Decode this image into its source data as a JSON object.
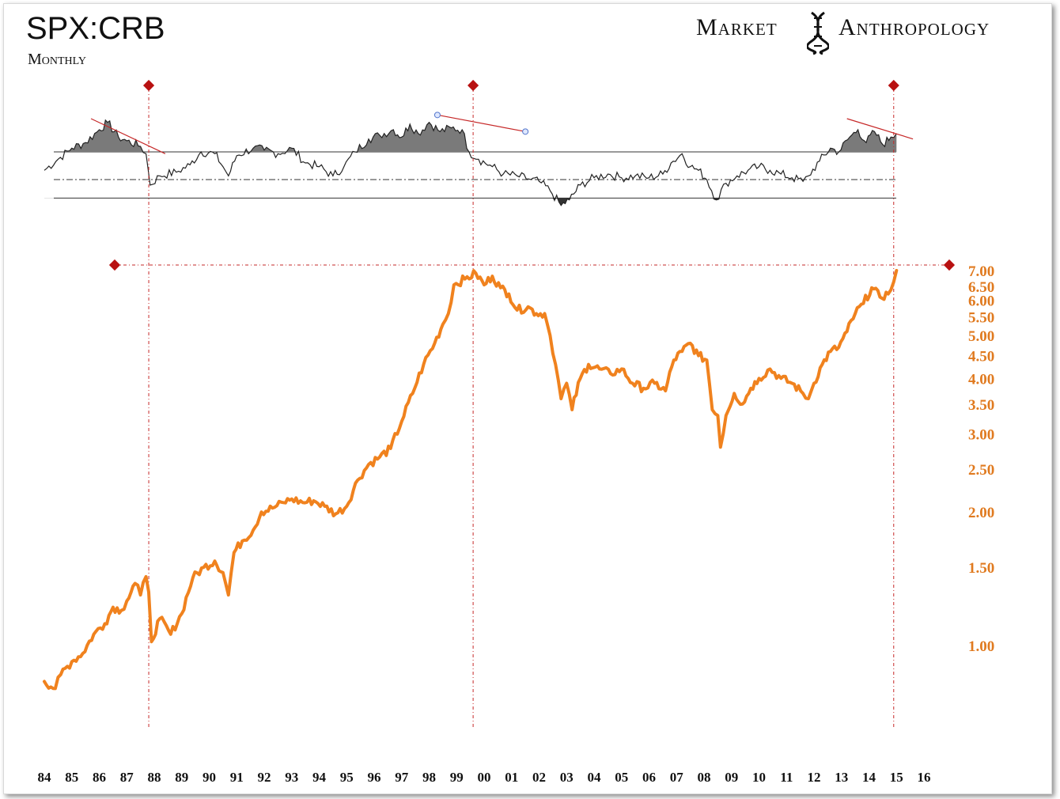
{
  "header": {
    "title": "SPX:CRB",
    "subtitle": "Monthly",
    "brand_left": "Market",
    "brand_right": "Anthropology",
    "brand_icon": "dna-icon"
  },
  "colors": {
    "ratio_line": "#f0821e",
    "ytick": "#e07a1f",
    "marker": "#b81111",
    "guide": "#c62828",
    "oscillator": "#222222",
    "oscillator_fill": "#7a7a7a"
  },
  "chart_data": {
    "type": "line",
    "title": "SPX:CRB",
    "subtitle": "Monthly",
    "y_scale": "log",
    "ylim": [
      0.78,
      7.1
    ],
    "xlim": [
      1984.0,
      2016.2
    ],
    "y_ticks": [
      "7.00",
      "6.50",
      "6.00",
      "5.50",
      "5.00",
      "4.50",
      "4.00",
      "3.50",
      "3.00",
      "2.50",
      "2.00",
      "1.50",
      "1.00"
    ],
    "x_ticks": [
      "84",
      "85",
      "86",
      "87",
      "88",
      "89",
      "90",
      "91",
      "92",
      "93",
      "94",
      "95",
      "96",
      "97",
      "98",
      "99",
      "00",
      "01",
      "02",
      "03",
      "04",
      "05",
      "06",
      "07",
      "08",
      "09",
      "10",
      "11",
      "12",
      "13",
      "14",
      "15",
      "16"
    ],
    "series": [
      {
        "values": [
          [
            1984.0,
            0.83
          ],
          [
            1984.4,
            0.8
          ],
          [
            1984.6,
            0.86
          ],
          [
            1985.0,
            0.92
          ],
          [
            1985.4,
            0.96
          ],
          [
            1985.8,
            1.06
          ],
          [
            1986.2,
            1.12
          ],
          [
            1986.5,
            1.22
          ],
          [
            1986.8,
            1.2
          ],
          [
            1987.0,
            1.26
          ],
          [
            1987.3,
            1.38
          ],
          [
            1987.5,
            1.3
          ],
          [
            1987.7,
            1.43
          ],
          [
            1987.8,
            1.32
          ],
          [
            1987.9,
            1.02
          ],
          [
            1988.2,
            1.15
          ],
          [
            1988.6,
            1.06
          ],
          [
            1989.0,
            1.18
          ],
          [
            1989.4,
            1.42
          ],
          [
            1989.8,
            1.5
          ],
          [
            1990.2,
            1.55
          ],
          [
            1990.5,
            1.46
          ],
          [
            1990.7,
            1.3
          ],
          [
            1990.9,
            1.62
          ],
          [
            1991.2,
            1.72
          ],
          [
            1991.6,
            1.82
          ],
          [
            1991.9,
            2.0
          ],
          [
            1992.3,
            2.04
          ],
          [
            1992.7,
            2.1
          ],
          [
            1993.0,
            2.14
          ],
          [
            1993.4,
            2.1
          ],
          [
            1993.8,
            2.12
          ],
          [
            1994.2,
            2.06
          ],
          [
            1994.6,
            1.98
          ],
          [
            1995.0,
            2.06
          ],
          [
            1995.4,
            2.36
          ],
          [
            1995.8,
            2.56
          ],
          [
            1996.2,
            2.66
          ],
          [
            1996.6,
            2.78
          ],
          [
            1997.0,
            3.2
          ],
          [
            1997.4,
            3.7
          ],
          [
            1997.8,
            4.3
          ],
          [
            1998.2,
            4.8
          ],
          [
            1998.5,
            5.3
          ],
          [
            1998.7,
            5.6
          ],
          [
            1998.9,
            6.5
          ],
          [
            1999.3,
            6.7
          ],
          [
            1999.7,
            6.9
          ],
          [
            2000.0,
            6.5
          ],
          [
            2000.3,
            6.8
          ],
          [
            2000.6,
            6.4
          ],
          [
            2000.9,
            6.2
          ],
          [
            2001.2,
            5.7
          ],
          [
            2001.6,
            5.8
          ],
          [
            2001.9,
            5.6
          ],
          [
            2002.2,
            5.6
          ],
          [
            2002.4,
            5.0
          ],
          [
            2002.6,
            4.3
          ],
          [
            2002.8,
            3.6
          ],
          [
            2003.0,
            3.9
          ],
          [
            2003.2,
            3.4
          ],
          [
            2003.5,
            4.0
          ],
          [
            2003.8,
            4.3
          ],
          [
            2004.2,
            4.2
          ],
          [
            2004.6,
            4.1
          ],
          [
            2005.0,
            4.2
          ],
          [
            2005.4,
            3.9
          ],
          [
            2005.8,
            3.8
          ],
          [
            2006.2,
            3.9
          ],
          [
            2006.6,
            3.75
          ],
          [
            2006.9,
            4.4
          ],
          [
            2007.2,
            4.6
          ],
          [
            2007.5,
            4.8
          ],
          [
            2007.8,
            4.5
          ],
          [
            2008.1,
            4.4
          ],
          [
            2008.3,
            3.4
          ],
          [
            2008.5,
            3.3
          ],
          [
            2008.6,
            2.8
          ],
          [
            2008.8,
            3.3
          ],
          [
            2009.1,
            3.7
          ],
          [
            2009.4,
            3.5
          ],
          [
            2009.7,
            3.8
          ],
          [
            2010.0,
            4.0
          ],
          [
            2010.4,
            4.2
          ],
          [
            2010.8,
            4.0
          ],
          [
            2011.2,
            3.9
          ],
          [
            2011.6,
            3.7
          ],
          [
            2011.8,
            3.6
          ],
          [
            2012.0,
            3.9
          ],
          [
            2012.3,
            4.3
          ],
          [
            2012.6,
            4.6
          ],
          [
            2012.9,
            4.7
          ],
          [
            2013.2,
            5.1
          ],
          [
            2013.5,
            5.6
          ],
          [
            2013.8,
            5.9
          ],
          [
            2014.1,
            6.4
          ],
          [
            2014.4,
            6.1
          ],
          [
            2014.7,
            6.2
          ],
          [
            2014.9,
            6.6
          ],
          [
            2015.0,
            7.0
          ]
        ]
      }
    ],
    "oscillator": {
      "type": "area",
      "reference_lines": [
        "upper",
        "mid",
        "lower"
      ],
      "values": [
        [
          1984.0,
          60
        ],
        [
          1984.5,
          66
        ],
        [
          1985.0,
          72
        ],
        [
          1985.5,
          75
        ],
        [
          1986.0,
          82
        ],
        [
          1986.3,
          86
        ],
        [
          1986.7,
          78
        ],
        [
          1987.0,
          76
        ],
        [
          1987.5,
          73
        ],
        [
          1987.7,
          69
        ],
        [
          1987.85,
          52
        ],
        [
          1988.2,
          57
        ],
        [
          1988.8,
          59
        ],
        [
          1989.3,
          63
        ],
        [
          1989.7,
          70
        ],
        [
          1990.2,
          69
        ],
        [
          1990.5,
          62
        ],
        [
          1990.7,
          57
        ],
        [
          1991.0,
          68
        ],
        [
          1991.6,
          72
        ],
        [
          1992.0,
          71
        ],
        [
          1992.5,
          69
        ],
        [
          1993.0,
          72
        ],
        [
          1993.5,
          64
        ],
        [
          1994.0,
          62
        ],
        [
          1994.5,
          57
        ],
        [
          1994.9,
          62
        ],
        [
          1995.3,
          70
        ],
        [
          1995.8,
          77
        ],
        [
          1996.2,
          79
        ],
        [
          1996.7,
          82
        ],
        [
          1997.0,
          78
        ],
        [
          1997.3,
          85
        ],
        [
          1997.6,
          80
        ],
        [
          1998.0,
          86
        ],
        [
          1998.4,
          81
        ],
        [
          1998.8,
          83
        ],
        [
          1999.2,
          82
        ],
        [
          1999.45,
          70
        ],
        [
          1999.8,
          66
        ],
        [
          2000.3,
          62
        ],
        [
          2000.7,
          58
        ],
        [
          2001.2,
          57
        ],
        [
          2001.7,
          55
        ],
        [
          2002.0,
          54
        ],
        [
          2002.4,
          49
        ],
        [
          2002.8,
          41
        ],
        [
          2003.1,
          44
        ],
        [
          2003.5,
          52
        ],
        [
          2004.0,
          56
        ],
        [
          2004.5,
          58
        ],
        [
          2005.0,
          56
        ],
        [
          2005.5,
          57
        ],
        [
          2006.0,
          56
        ],
        [
          2006.5,
          58
        ],
        [
          2006.8,
          64
        ],
        [
          2007.2,
          69
        ],
        [
          2007.5,
          62
        ],
        [
          2007.8,
          60
        ],
        [
          2008.1,
          55
        ],
        [
          2008.45,
          44
        ],
        [
          2008.8,
          53
        ],
        [
          2009.2,
          57
        ],
        [
          2009.6,
          60
        ],
        [
          2010.0,
          62
        ],
        [
          2010.4,
          60
        ],
        [
          2010.8,
          58
        ],
        [
          2011.2,
          56
        ],
        [
          2011.6,
          54
        ],
        [
          2011.8,
          57
        ],
        [
          2012.2,
          65
        ],
        [
          2012.6,
          72
        ],
        [
          2012.9,
          70
        ],
        [
          2013.3,
          78
        ],
        [
          2013.6,
          82
        ],
        [
          2013.9,
          75
        ],
        [
          2014.2,
          81
        ],
        [
          2014.5,
          74
        ],
        [
          2014.8,
          78
        ],
        [
          2015.0,
          80
        ]
      ]
    },
    "markers": {
      "vertical_guides_x": [
        1987.8,
        1999.6,
        2014.9
      ],
      "horizontal_guide_y": 7.0
    }
  }
}
